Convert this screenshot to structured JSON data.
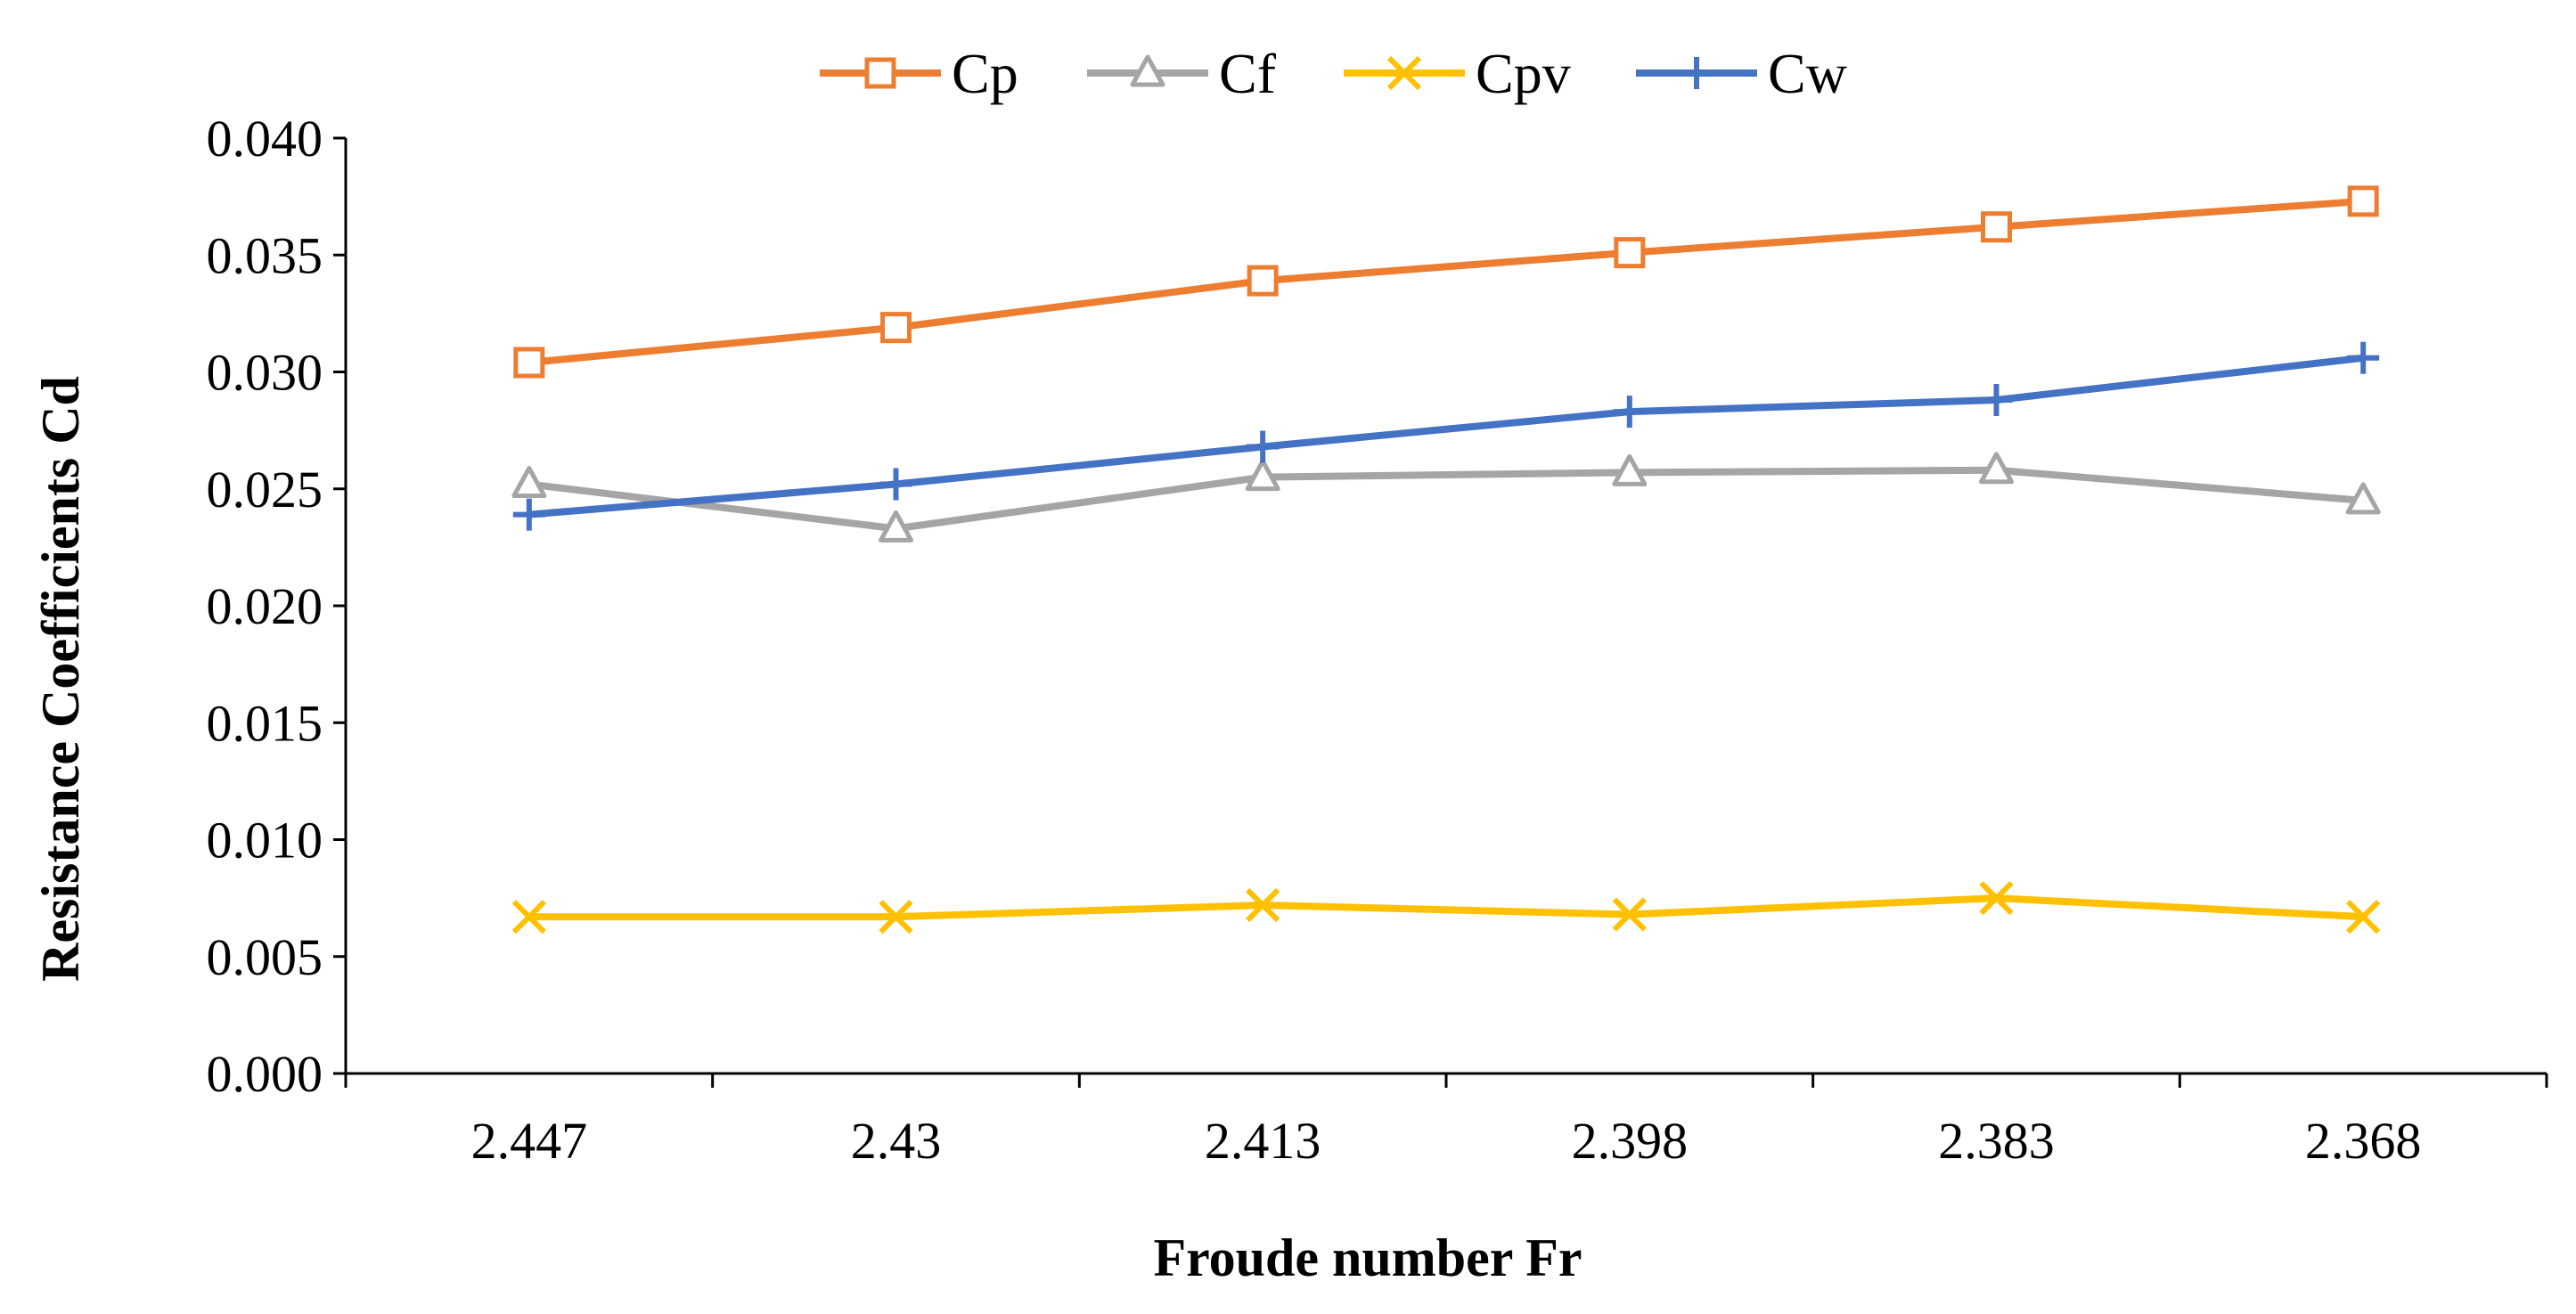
{
  "chart_data": {
    "type": "line",
    "title": "",
    "xlabel": "Froude number   Fr",
    "ylabel": "Resistance Coefficients    Cd",
    "categories": [
      "2.447",
      "2.43",
      "2.413",
      "2.398",
      "2.383",
      "2.368"
    ],
    "ylim": [
      0,
      0.04
    ],
    "yticks": [
      "0.000",
      "0.005",
      "0.010",
      "0.015",
      "0.020",
      "0.025",
      "0.030",
      "0.035",
      "0.040"
    ],
    "grid": false,
    "legend": "top-center",
    "series": [
      {
        "name": "Cp",
        "color": "#ED7D31",
        "marker": "square-open",
        "values": [
          0.0304,
          0.0319,
          0.0339,
          0.0351,
          0.0362,
          0.0373
        ]
      },
      {
        "name": "Cf",
        "color": "#A5A5A5",
        "marker": "triangle-open",
        "values": [
          0.0252,
          0.0233,
          0.0255,
          0.0257,
          0.0258,
          0.0245
        ]
      },
      {
        "name": "Cpv",
        "color": "#FFC000",
        "marker": "x",
        "values": [
          0.0067,
          0.0067,
          0.0072,
          0.0068,
          0.0075,
          0.0067
        ]
      },
      {
        "name": "Cw",
        "color": "#4472C4",
        "marker": "plus",
        "values": [
          0.0239,
          0.0252,
          0.0268,
          0.0283,
          0.0288,
          0.0306
        ]
      }
    ]
  }
}
